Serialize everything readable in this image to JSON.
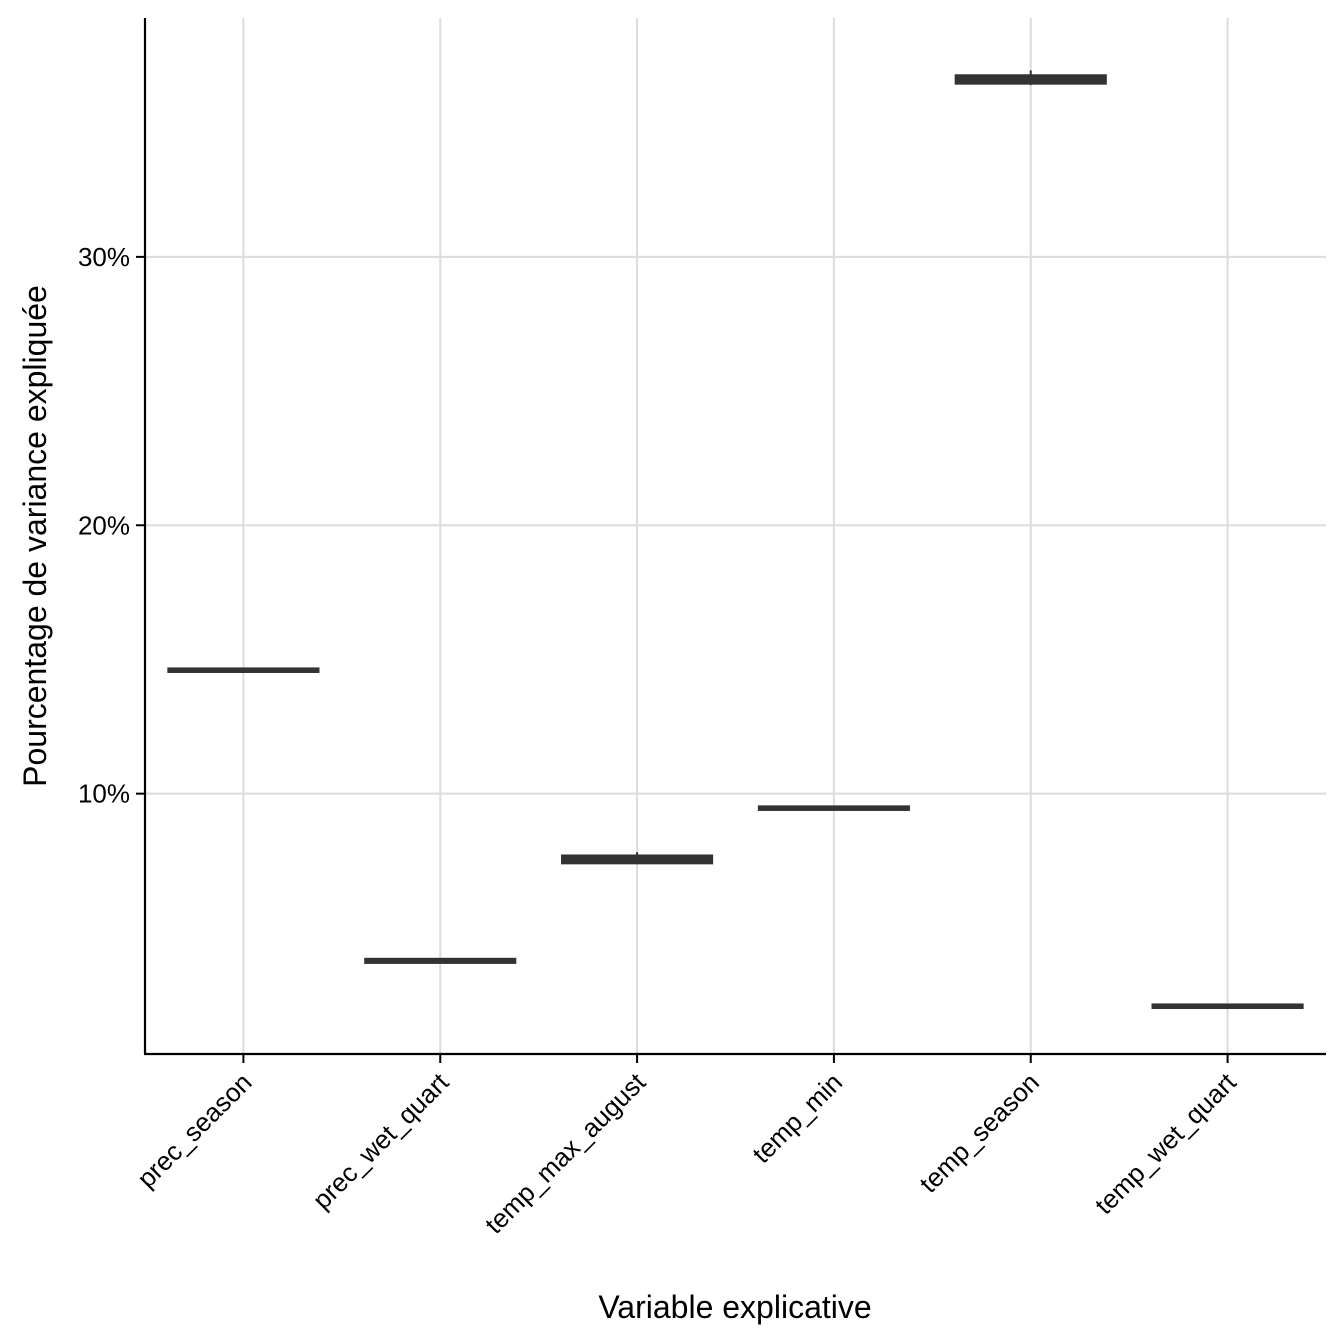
{
  "chart_data": {
    "type": "boxplot",
    "title": "",
    "xlabel": "Variable explicative",
    "ylabel": "Pourcentage de variance expliquée",
    "ylim": [
      0.3,
      38.9
    ],
    "yticks": [
      10,
      20,
      30
    ],
    "ytick_labels": [
      "10%",
      "20%",
      "30%"
    ],
    "grid": true,
    "legend": "none",
    "box_color": "#333333",
    "grid_color": "#dcdcdc",
    "categories": [
      "prec_season",
      "prec_wet_quart",
      "temp_max_august",
      "temp_min",
      "temp_season",
      "temp_wet_quart"
    ],
    "boxes": [
      {
        "category": "prec_season",
        "min": 14.56,
        "q1": 14.58,
        "median": 14.6,
        "q3": 14.62,
        "max": 14.64
      },
      {
        "category": "prec_wet_quart",
        "min": 3.72,
        "q1": 3.74,
        "median": 3.76,
        "q3": 3.8,
        "max": 3.86
      },
      {
        "category": "temp_max_august",
        "min": 7.4,
        "q1": 7.45,
        "median": 7.55,
        "q3": 7.65,
        "max": 7.82
      },
      {
        "category": "temp_min",
        "min": 9.42,
        "q1": 9.44,
        "median": 9.46,
        "q3": 9.48,
        "max": 9.5
      },
      {
        "category": "temp_season",
        "min": 36.4,
        "q1": 36.5,
        "median": 36.62,
        "q3": 36.72,
        "max": 36.95
      },
      {
        "category": "temp_wet_quart",
        "min": 2.04,
        "q1": 2.06,
        "median": 2.08,
        "q3": 2.1,
        "max": 2.12
      }
    ]
  }
}
